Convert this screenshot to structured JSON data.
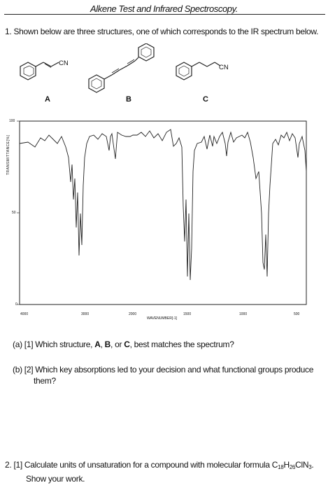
{
  "title": "Alkene Test and Infrared Spectroscopy.",
  "question1": {
    "number": "1.",
    "text": "Shown below are three structures, one of which corresponds to the IR spectrum below.",
    "structures": [
      {
        "label": "A",
        "substituent": "CN"
      },
      {
        "label": "B",
        "substituent": ""
      },
      {
        "label": "C",
        "substituent": "CN"
      }
    ],
    "part_a": {
      "prefix": "(a) [1] Which structure, ",
      "opt_a": "A",
      "sep1": ", ",
      "opt_b": "B",
      "sep2": ", or ",
      "opt_c": "C",
      "suffix": ", best matches the spectrum?"
    },
    "part_b": {
      "line1": "(b) [2] Which key absorptions led to your decision and what functional groups produce",
      "line2": "them?"
    }
  },
  "spectrum": {
    "y_axis_label": "TRANSMITTANCE[%]",
    "x_axis_label": "WAVENUMBER[-1]",
    "y_ticks": [
      "100",
      "50",
      "0"
    ],
    "x_ticks": [
      "4000",
      "3000",
      "2000",
      "1500",
      "1000",
      "500"
    ]
  },
  "question2": {
    "prefix": "2. [1] Calculate units of unsaturation for a compound with molecular formula C",
    "c_sub": "18",
    "h": "H",
    "h_sub": "26",
    "rest": "ClN",
    "n_sub": "3",
    "end": ".",
    "line2": "Show your work."
  }
}
